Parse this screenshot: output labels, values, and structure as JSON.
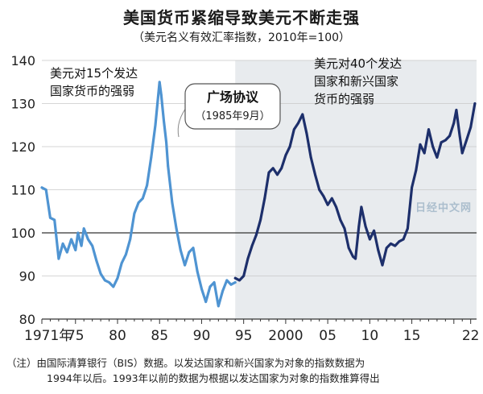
{
  "title": "美国货币紧缩导致美元不断走强",
  "subtitle": "（美元名义有效汇率指数，2010年=100）",
  "annotations": {
    "early_label_1": "美元对15个发达",
    "early_label_2": "国家货币的强弱",
    "late_label_1": "美元对40个发达",
    "late_label_2": "国家和新兴国家",
    "late_label_3": "货币的强弱",
    "callout_title": "广场协议",
    "callout_date": "（1985年9月）"
  },
  "footnote": {
    "line1": "（注）由国际清算银行（BIS）数据。以发达国家和新兴国家为对象的指数数据为",
    "line2": "1994年以后。1993年以前的数据为根据以发达国家为对象的指数推算得出"
  },
  "watermark": "日经中文网",
  "colors": {
    "early_series": "#4f94d2",
    "late_series": "#1d2f6b",
    "shade": "#e8ebee",
    "grid": "#c8c8c8",
    "baseline": "#333333"
  },
  "chart_data": {
    "type": "line",
    "title": "美国货币紧缩导致美元不断走强",
    "subtitle": "（美元名义有效汇率指数，2010年=100）",
    "xlabel": "",
    "ylabel": "",
    "xlim": [
      1971,
      2022.7
    ],
    "ylim": [
      80,
      140
    ],
    "y_ticks": [
      80,
      90,
      100,
      110,
      120,
      130,
      140
    ],
    "x_ticks": [
      {
        "value": 1971,
        "label": "1971年"
      },
      {
        "value": 1975,
        "label": "75"
      },
      {
        "value": 1980,
        "label": "80"
      },
      {
        "value": 1985,
        "label": "85"
      },
      {
        "value": 1990,
        "label": "90"
      },
      {
        "value": 1995,
        "label": "95"
      },
      {
        "value": 2000,
        "label": "2000"
      },
      {
        "value": 2005,
        "label": "05"
      },
      {
        "value": 2010,
        "label": "10"
      },
      {
        "value": 2015,
        "label": "15"
      },
      {
        "value": 2022,
        "label": "22"
      }
    ],
    "baseline": 100,
    "grid": "horizontal",
    "shaded_region": [
      1994,
      2022.7
    ],
    "series": [
      {
        "name": "美元对15个发达国家货币的强弱",
        "color": "#4f94d2",
        "x": [
          1971.0,
          1971.5,
          1972.0,
          1972.5,
          1973.0,
          1973.5,
          1974.0,
          1974.5,
          1975.0,
          1975.3,
          1975.7,
          1976.0,
          1976.5,
          1977.0,
          1977.5,
          1978.0,
          1978.5,
          1979.0,
          1979.5,
          1980.0,
          1980.5,
          1981.0,
          1981.5,
          1982.0,
          1982.5,
          1983.0,
          1983.5,
          1984.0,
          1984.5,
          1985.0,
          1985.2,
          1985.5,
          1985.8,
          1986.0,
          1986.5,
          1987.0,
          1987.5,
          1988.0,
          1988.5,
          1989.0,
          1989.5,
          1990.0,
          1990.5,
          1991.0,
          1991.5,
          1992.0,
          1992.5,
          1993.0,
          1993.5,
          1994.0
        ],
        "values": [
          110.5,
          110.0,
          103.5,
          103.0,
          94.0,
          97.5,
          95.5,
          98.5,
          96.0,
          100.0,
          97.0,
          101.0,
          98.5,
          97.0,
          93.5,
          90.5,
          89.0,
          88.5,
          87.5,
          89.5,
          93.0,
          95.0,
          98.5,
          104.5,
          107.0,
          108.0,
          111.0,
          117.5,
          125.0,
          135.0,
          132.0,
          126.0,
          121.0,
          115.5,
          107.0,
          101.0,
          96.0,
          92.5,
          95.5,
          96.5,
          91.0,
          87.0,
          84.0,
          87.5,
          88.5,
          83.0,
          86.5,
          89.0,
          88.0,
          88.5
        ]
      },
      {
        "name": "美元对40个发达国家和新兴国家货币的强弱",
        "color": "#1d2f6b",
        "x": [
          1994.0,
          1994.5,
          1995.0,
          1995.5,
          1996.0,
          1996.5,
          1997.0,
          1997.5,
          1998.0,
          1998.5,
          1999.0,
          1999.5,
          2000.0,
          2000.5,
          2001.0,
          2001.5,
          2002.0,
          2002.5,
          2003.0,
          2003.5,
          2004.0,
          2004.5,
          2005.0,
          2005.5,
          2006.0,
          2006.5,
          2007.0,
          2007.5,
          2008.0,
          2008.3,
          2008.7,
          2009.0,
          2009.5,
          2010.0,
          2010.5,
          2011.0,
          2011.5,
          2012.0,
          2012.5,
          2013.0,
          2013.5,
          2014.0,
          2014.5,
          2015.0,
          2015.5,
          2016.0,
          2016.5,
          2017.0,
          2017.5,
          2018.0,
          2018.5,
          2019.0,
          2019.5,
          2020.0,
          2020.3,
          2020.7,
          2021.0,
          2021.5,
          2022.0,
          2022.5
        ],
        "values": [
          89.5,
          89.0,
          90.0,
          94.0,
          97.0,
          99.5,
          103.0,
          108.0,
          114.0,
          115.0,
          113.5,
          115.0,
          118.0,
          120.0,
          124.0,
          125.5,
          127.5,
          123.0,
          117.5,
          113.5,
          110.0,
          108.5,
          106.5,
          108.0,
          106.0,
          103.0,
          101.0,
          96.5,
          94.5,
          94.0,
          101.5,
          106.0,
          101.5,
          98.5,
          100.5,
          96.0,
          92.5,
          96.5,
          97.5,
          97.0,
          98.0,
          98.5,
          101.0,
          110.5,
          114.5,
          120.5,
          118.5,
          124.0,
          120.0,
          117.5,
          121.0,
          121.5,
          122.5,
          125.5,
          128.5,
          122.5,
          118.5,
          121.5,
          124.5,
          130.0
        ]
      }
    ]
  }
}
